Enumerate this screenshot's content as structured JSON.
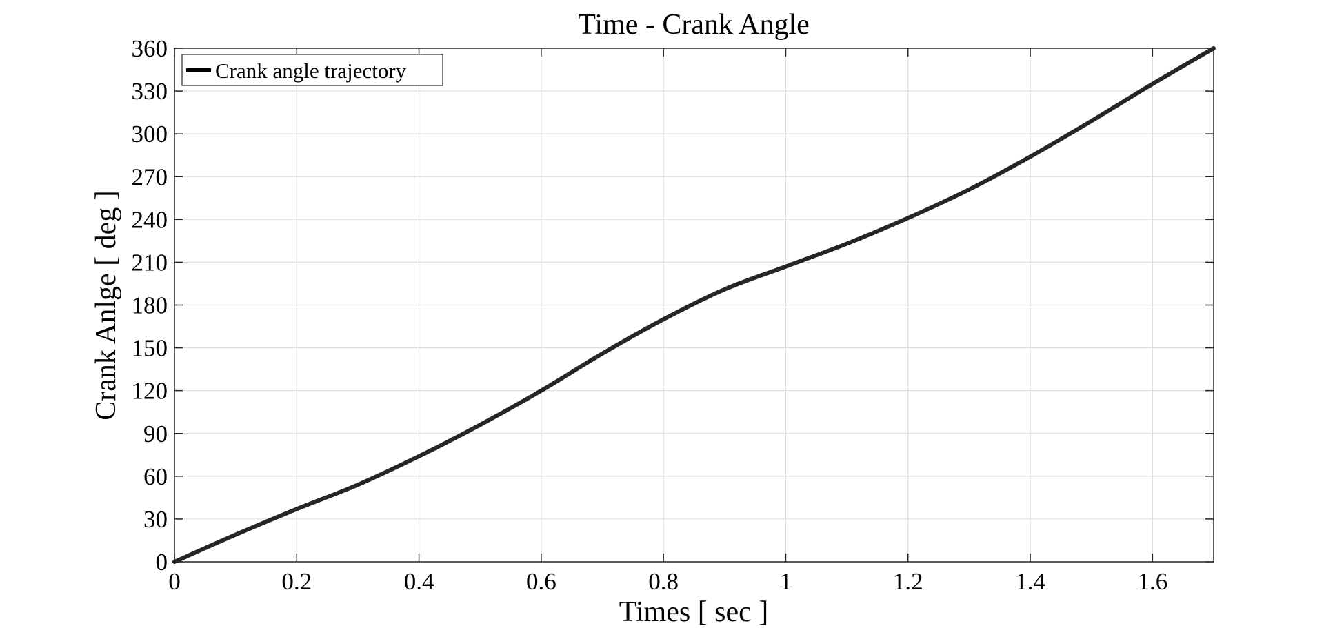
{
  "chart_data": {
    "type": "line",
    "title": "Time - Crank Angle",
    "xlabel": "Times [ sec ]",
    "ylabel": "Crank Anlge [ deg ]",
    "xlim": [
      0,
      1.7
    ],
    "ylim": [
      0,
      360
    ],
    "x_ticks": [
      0,
      0.2,
      0.4,
      0.6,
      0.8,
      1,
      1.2,
      1.4,
      1.6
    ],
    "x_tick_labels": [
      "0",
      "0.2",
      "0.4",
      "0.6",
      "0.8",
      "1",
      "1.2",
      "1.4",
      "1.6"
    ],
    "y_ticks": [
      0,
      30,
      60,
      90,
      120,
      150,
      180,
      210,
      240,
      270,
      300,
      330,
      360
    ],
    "y_tick_labels": [
      "0",
      "30",
      "60",
      "90",
      "120",
      "150",
      "180",
      "210",
      "240",
      "270",
      "300",
      "330",
      "360"
    ],
    "grid": true,
    "legend_position": "top-left",
    "series": [
      {
        "name": "Crank angle trajectory",
        "color": "#000000",
        "x": [
          0,
          0.1,
          0.2,
          0.3,
          0.4,
          0.5,
          0.6,
          0.7,
          0.8,
          0.9,
          1.0,
          1.1,
          1.2,
          1.3,
          1.4,
          1.5,
          1.6,
          1.7
        ],
        "y": [
          0,
          19,
          37,
          54,
          74,
          96,
          120,
          146,
          170,
          191,
          207,
          223,
          241,
          261,
          284,
          309,
          335,
          360
        ]
      }
    ]
  }
}
